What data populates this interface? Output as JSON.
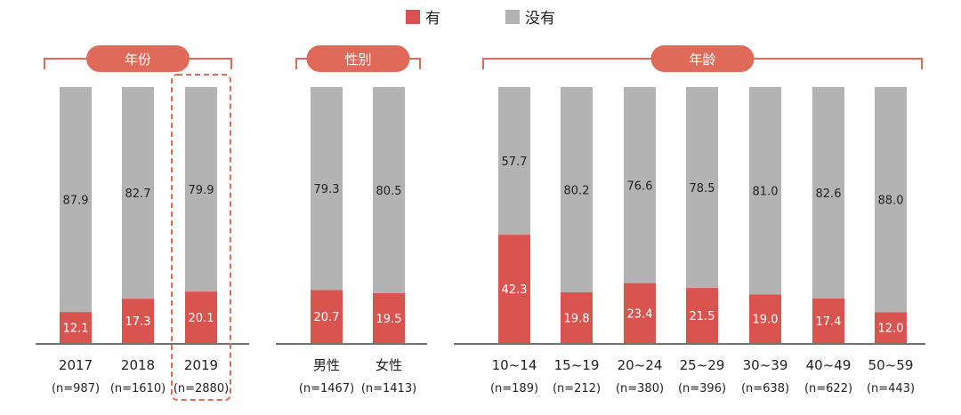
{
  "legend": {
    "yes": "有",
    "no": "没有"
  },
  "colors": {
    "yes": "#d9534f",
    "no": "#b3b3b3",
    "bracket": "#e06a5a",
    "highlight": "#e06a5a"
  },
  "chart_data": {
    "type": "bar",
    "stacked": true,
    "percent_stack": true,
    "ylim": [
      0,
      100
    ],
    "groups": [
      {
        "title": "年份",
        "categories": [
          {
            "label": "2017",
            "n": "(n=987)",
            "yes": "12.1",
            "no": "87.9"
          },
          {
            "label": "2018",
            "n": "(n=1610)",
            "yes": "17.3",
            "no": "82.7"
          },
          {
            "label": "2019",
            "n": "(n=2880)",
            "yes": "20.1",
            "no": "79.9",
            "highlight": true
          }
        ]
      },
      {
        "title": "性别",
        "categories": [
          {
            "label": "男性",
            "n": "(n=1467)",
            "yes": "20.7",
            "no": "79.3"
          },
          {
            "label": "女性",
            "n": "(n=1413)",
            "yes": "19.5",
            "no": "80.5"
          }
        ]
      },
      {
        "title": "年龄",
        "categories": [
          {
            "label": "10~14",
            "n": "(n=189)",
            "yes": "42.3",
            "no": "57.7"
          },
          {
            "label": "15~19",
            "n": "(n=212)",
            "yes": "19.8",
            "no": "80.2"
          },
          {
            "label": "20~24",
            "n": "(n=380)",
            "yes": "23.4",
            "no": "76.6"
          },
          {
            "label": "25~29",
            "n": "(n=396)",
            "yes": "21.5",
            "no": "78.5"
          },
          {
            "label": "30~39",
            "n": "(n=638)",
            "yes": "19.0",
            "no": "81.0"
          },
          {
            "label": "40~49",
            "n": "(n=622)",
            "yes": "17.4",
            "no": "82.6"
          },
          {
            "label": "50~59",
            "n": "(n=443)",
            "yes": "12.0",
            "no": "88.0"
          }
        ]
      }
    ]
  }
}
